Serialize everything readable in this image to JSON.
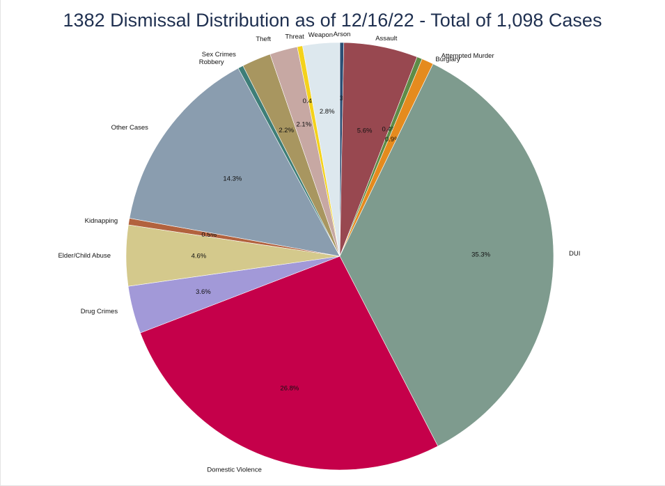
{
  "chart_data": {
    "type": "pie",
    "title": "1382 Dismissal Distribution as of 12/16/22 - Total of 1,098 Cases",
    "slices": [
      {
        "label": "Arson",
        "value": 0.3,
        "pct_label": "0.3%",
        "color": "#2b4f75"
      },
      {
        "label": "Assault",
        "value": 5.6,
        "pct_label": "5.6%",
        "color": "#984850"
      },
      {
        "label": "Attempted Murder",
        "value": 0.4,
        "pct_label": "0.4%",
        "color": "#5e8c47"
      },
      {
        "label": "Burglary",
        "value": 0.9,
        "pct_label": "0.9%",
        "color": "#e58b1e"
      },
      {
        "label": "DUI",
        "value": 35.3,
        "pct_label": "35.3%",
        "color": "#7e9b8e"
      },
      {
        "label": "Domestic Violence",
        "value": 26.8,
        "pct_label": "26.8%",
        "color": "#c5004a"
      },
      {
        "label": "Drug Crimes",
        "value": 3.6,
        "pct_label": "3.6%",
        "color": "#a299d8"
      },
      {
        "label": "Elder/Child Abuse",
        "value": 4.6,
        "pct_label": "4.6%",
        "color": "#d4c98c"
      },
      {
        "label": "Kidnapping",
        "value": 0.5,
        "pct_label": "0.5%",
        "color": "#b2623e"
      },
      {
        "label": "Other Cases",
        "value": 14.3,
        "pct_label": "14.3%",
        "color": "#8a9daf"
      },
      {
        "label": "Robbery",
        "value": 0.4,
        "pct_label": "0.4%",
        "color": "#3e7e78"
      },
      {
        "label": "Sex Crimes",
        "value": 2.2,
        "pct_label": "2.2%",
        "color": "#a89660"
      },
      {
        "label": "Theft",
        "value": 2.1,
        "pct_label": "2.1%",
        "color": "#c7a8a3"
      },
      {
        "label": "Threat",
        "value": 0.4,
        "pct_label": "0.4%",
        "color": "#f4d21c"
      },
      {
        "label": "Weapon",
        "value": 2.8,
        "pct_label": "2.8%",
        "color": "#dde8ee"
      }
    ],
    "start": "12 o'clock",
    "direction": "clockwise"
  }
}
